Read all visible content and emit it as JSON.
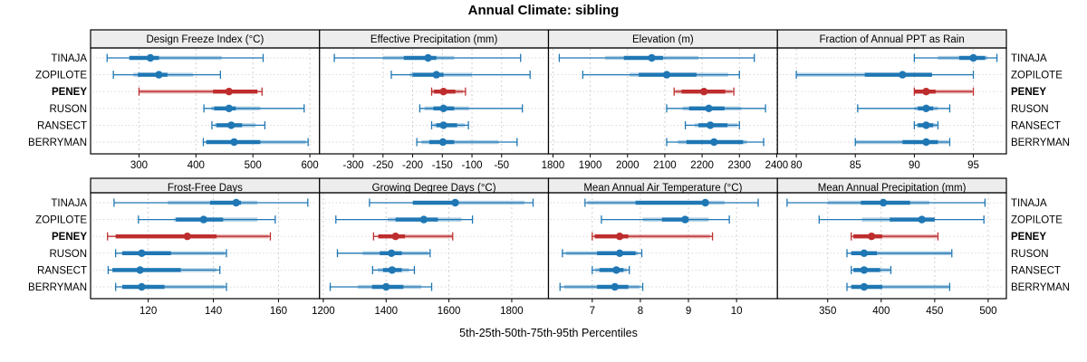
{
  "title": "Annual Climate: sibling",
  "caption": "5th-25th-50th-75th-95th Percentiles",
  "sites": [
    "TINAJA",
    "ZOPILOTE",
    "PENEY",
    "RUSON",
    "RANSECT",
    "BERRYMAN"
  ],
  "highlighted_site": "PENEY",
  "colors": {
    "series_normal": "#1f77b4",
    "series_highlight": "#be2d2d",
    "panel_header_bg": "#ededed",
    "panel_border": "#000000",
    "gridline": "#cccccc",
    "row_gridline": "#d6d6d6",
    "text": "#000000"
  },
  "chart_data": [
    {
      "type": "interval",
      "title": "Design Freeze Index (°C)",
      "grid_row": 0,
      "grid_col": 0,
      "xlim": [
        215,
        617
      ],
      "ticks": [
        300,
        400,
        500,
        600
      ],
      "grid": true,
      "rows": [
        {
          "site": "TINAJA",
          "p5": 244,
          "p25": 283,
          "p50": 320,
          "p75": 445,
          "p95": 518,
          "inner": [
            283,
            335
          ]
        },
        {
          "site": "ZOPILOTE",
          "p5": 255,
          "p25": 290,
          "p50": 335,
          "p75": 395,
          "p95": 443,
          "inner": [
            298,
            350
          ]
        },
        {
          "site": "PENEY",
          "p5": 300,
          "p25": 300,
          "p50": 458,
          "p75": 508,
          "p95": 516,
          "inner": [
            430,
            508
          ]
        },
        {
          "site": "RUSON",
          "p5": 414,
          "p25": 427,
          "p50": 458,
          "p75": 513,
          "p95": 590,
          "inner": [
            432,
            470
          ]
        },
        {
          "site": "RANSECT",
          "p5": 428,
          "p25": 433,
          "p50": 462,
          "p75": 505,
          "p95": 521,
          "inner": [
            436,
            481
          ]
        },
        {
          "site": "BERRYMAN",
          "p5": 413,
          "p25": 418,
          "p50": 467,
          "p75": 593,
          "p95": 597,
          "inner": [
            418,
            513
          ]
        }
      ]
    },
    {
      "type": "interval",
      "title": "Effective Precipitation (mm)",
      "grid_row": 0,
      "grid_col": 1,
      "xlim": [
        -357,
        29
      ],
      "ticks": [
        -300,
        -250,
        -200,
        -150,
        -100,
        -50
      ],
      "grid": true,
      "rows": [
        {
          "site": "TINAJA",
          "p5": -332,
          "p25": -250,
          "p50": -174,
          "p75": -130,
          "p95": -18,
          "inner": [
            -215,
            -160
          ]
        },
        {
          "site": "ZOPILOTE",
          "p5": -236,
          "p25": -205,
          "p50": -160,
          "p75": -100,
          "p95": -2,
          "inner": [
            -200,
            -148
          ]
        },
        {
          "site": "PENEY",
          "p5": -168,
          "p25": -168,
          "p50": -148,
          "p75": -115,
          "p95": -111,
          "inner": [
            -164,
            -128
          ]
        },
        {
          "site": "RUSON",
          "p5": -188,
          "p25": -180,
          "p50": -148,
          "p75": -105,
          "p95": -15,
          "inner": [
            -165,
            -130
          ]
        },
        {
          "site": "RANSECT",
          "p5": -168,
          "p25": -165,
          "p50": -148,
          "p75": -112,
          "p95": -106,
          "inner": [
            -160,
            -125
          ]
        },
        {
          "site": "BERRYMAN",
          "p5": -193,
          "p25": -185,
          "p50": -149,
          "p75": -55,
          "p95": -24,
          "inner": [
            -172,
            -130
          ]
        }
      ]
    },
    {
      "type": "interval",
      "title": "Elevation (m)",
      "grid_row": 0,
      "grid_col": 2,
      "xlim": [
        1788,
        2402
      ],
      "ticks": [
        1800,
        1900,
        2000,
        2100,
        2200,
        2300,
        2400
      ],
      "grid": true,
      "rows": [
        {
          "site": "TINAJA",
          "p5": 1817,
          "p25": 1940,
          "p50": 2065,
          "p75": 2190,
          "p95": 2340,
          "inner": [
            1990,
            2095
          ]
        },
        {
          "site": "ZOPILOTE",
          "p5": 1880,
          "p25": 2005,
          "p50": 2105,
          "p75": 2270,
          "p95": 2300,
          "inner": [
            2030,
            2185
          ]
        },
        {
          "site": "PENEY",
          "p5": 2125,
          "p25": 2128,
          "p50": 2205,
          "p75": 2280,
          "p95": 2285,
          "inner": [
            2145,
            2262
          ]
        },
        {
          "site": "RUSON",
          "p5": 2105,
          "p25": 2148,
          "p50": 2218,
          "p75": 2305,
          "p95": 2370,
          "inner": [
            2165,
            2260
          ]
        },
        {
          "site": "RANSECT",
          "p5": 2155,
          "p25": 2180,
          "p50": 2222,
          "p75": 2295,
          "p95": 2300,
          "inner": [
            2190,
            2268
          ]
        },
        {
          "site": "BERRYMAN",
          "p5": 2105,
          "p25": 2135,
          "p50": 2232,
          "p75": 2320,
          "p95": 2365,
          "inner": [
            2158,
            2310
          ]
        }
      ]
    },
    {
      "type": "interval",
      "title": "Fraction of Annual PPT as Rain",
      "grid_row": 0,
      "grid_col": 3,
      "xlim": [
        78.4,
        97.8
      ],
      "ticks": [
        80,
        85,
        90,
        95
      ],
      "grid": true,
      "rows": [
        {
          "site": "TINAJA",
          "p5": 90,
          "p25": 92,
          "p50": 95,
          "p75": 96.2,
          "p95": 97,
          "inner": [
            93.8,
            96
          ]
        },
        {
          "site": "ZOPILOTE",
          "p5": 80,
          "p25": 80,
          "p50": 89,
          "p75": 91.5,
          "p95": 95,
          "inner": [
            85.8,
            91.5
          ]
        },
        {
          "site": "PENEY",
          "p5": 90,
          "p25": 90,
          "p50": 91,
          "p75": 94.9,
          "p95": 95,
          "inner": [
            90,
            91.8
          ]
        },
        {
          "site": "RUSON",
          "p5": 85.2,
          "p25": 90,
          "p50": 91,
          "p75": 92,
          "p95": 93,
          "inner": [
            90.3,
            91.6
          ]
        },
        {
          "site": "RANSECT",
          "p5": 90,
          "p25": 90.2,
          "p50": 91,
          "p75": 91.9,
          "p95": 92,
          "inner": [
            90.3,
            91.6
          ]
        },
        {
          "site": "BERRYMAN",
          "p5": 85,
          "p25": 85,
          "p50": 91,
          "p75": 92.9,
          "p95": 93,
          "inner": [
            89,
            92
          ]
        }
      ]
    },
    {
      "type": "interval",
      "title": "Frost-Free Days",
      "grid_row": 1,
      "grid_col": 0,
      "xlim": [
        102.3,
        172.6
      ],
      "ticks": [
        120,
        140,
        160
      ],
      "grid": true,
      "rows": [
        {
          "site": "TINAJA",
          "p5": 109.5,
          "p25": 126,
          "p50": 147,
          "p75": 153.5,
          "p95": 169,
          "inner": [
            139,
            148.5
          ]
        },
        {
          "site": "ZOPILOTE",
          "p5": 117,
          "p25": 128,
          "p50": 137,
          "p75": 153.5,
          "p95": 159,
          "inner": [
            128.5,
            143
          ]
        },
        {
          "site": "PENEY",
          "p5": 107.5,
          "p25": 110,
          "p50": 132,
          "p75": 157,
          "p95": 157.5,
          "inner": [
            110,
            141
          ]
        },
        {
          "site": "RUSON",
          "p5": 110,
          "p25": 112,
          "p50": 118,
          "p75": 143.5,
          "p95": 144,
          "inner": [
            112,
            127
          ]
        },
        {
          "site": "RANSECT",
          "p5": 107.7,
          "p25": 109,
          "p50": 117.5,
          "p75": 141,
          "p95": 142,
          "inner": [
            109,
            130
          ]
        },
        {
          "site": "BERRYMAN",
          "p5": 110,
          "p25": 112,
          "p50": 118,
          "p75": 143.5,
          "p95": 144,
          "inner": [
            112,
            125
          ]
        }
      ]
    },
    {
      "type": "interval",
      "title": "Growing Degree Days (°C)",
      "grid_row": 1,
      "grid_col": 1,
      "xlim": [
        1188,
        1917
      ],
      "ticks": [
        1200,
        1400,
        1600,
        1800
      ],
      "grid": true,
      "rows": [
        {
          "site": "TINAJA",
          "p5": 1347,
          "p25": 1485,
          "p50": 1620,
          "p75": 1840,
          "p95": 1868,
          "inner": [
            1485,
            1625
          ]
        },
        {
          "site": "ZOPILOTE",
          "p5": 1240,
          "p25": 1405,
          "p50": 1520,
          "p75": 1640,
          "p95": 1675,
          "inner": [
            1430,
            1565
          ]
        },
        {
          "site": "PENEY",
          "p5": 1360,
          "p25": 1375,
          "p50": 1430,
          "p75": 1610,
          "p95": 1612,
          "inner": [
            1375,
            1460
          ]
        },
        {
          "site": "RUSON",
          "p5": 1245,
          "p25": 1325,
          "p50": 1417,
          "p75": 1535,
          "p95": 1540,
          "inner": [
            1380,
            1450
          ]
        },
        {
          "site": "RANSECT",
          "p5": 1357,
          "p25": 1373,
          "p50": 1419,
          "p75": 1473,
          "p95": 1490,
          "inner": [
            1390,
            1450
          ]
        },
        {
          "site": "BERRYMAN",
          "p5": 1222,
          "p25": 1310,
          "p50": 1400,
          "p75": 1512,
          "p95": 1545,
          "inner": [
            1355,
            1455
          ]
        }
      ]
    },
    {
      "type": "interval",
      "title": "Mean Annual Air Temperature (°C)",
      "grid_row": 1,
      "grid_col": 2,
      "xlim": [
        6.09,
        10.85
      ],
      "ticks": [
        7,
        8,
        9,
        10
      ],
      "grid": true,
      "rows": [
        {
          "site": "TINAJA",
          "p5": 6.85,
          "p25": 6.9,
          "p50": 9.35,
          "p75": 9.75,
          "p95": 10.45,
          "inner": [
            7.9,
            9.4
          ]
        },
        {
          "site": "ZOPILOTE",
          "p5": 7.19,
          "p25": 8.05,
          "p50": 8.93,
          "p75": 9.42,
          "p95": 9.85,
          "inner": [
            8.45,
            9.0
          ]
        },
        {
          "site": "PENEY",
          "p5": 7.0,
          "p25": 7.05,
          "p50": 7.57,
          "p75": 9.45,
          "p95": 9.5,
          "inner": [
            7.05,
            7.75
          ]
        },
        {
          "site": "RUSON",
          "p5": 6.38,
          "p25": 6.45,
          "p50": 7.57,
          "p75": 7.95,
          "p95": 8.03,
          "inner": [
            7.1,
            7.9
          ]
        },
        {
          "site": "RANSECT",
          "p5": 7.0,
          "p25": 7.06,
          "p50": 7.5,
          "p75": 7.72,
          "p95": 7.77,
          "inner": [
            7.15,
            7.65
          ]
        },
        {
          "site": "BERRYMAN",
          "p5": 6.33,
          "p25": 6.42,
          "p50": 7.47,
          "p75": 7.98,
          "p95": 8.05,
          "inner": [
            7.1,
            7.75
          ]
        }
      ]
    },
    {
      "type": "interval",
      "title": "Mean Annual Precipitation (mm)",
      "grid_row": 1,
      "grid_col": 3,
      "xlim": [
        303,
        517
      ],
      "ticks": [
        350,
        400,
        450,
        500
      ],
      "grid": true,
      "rows": [
        {
          "site": "TINAJA",
          "p5": 312,
          "p25": 350,
          "p50": 402,
          "p75": 445,
          "p95": 497,
          "inner": [
            381,
            427
          ]
        },
        {
          "site": "ZOPILOTE",
          "p5": 342,
          "p25": 382,
          "p50": 438,
          "p75": 450,
          "p95": 496,
          "inner": [
            408,
            450
          ]
        },
        {
          "site": "PENEY",
          "p5": 372,
          "p25": 374,
          "p50": 391,
          "p75": 452,
          "p95": 453,
          "inner": [
            374,
            401
          ]
        },
        {
          "site": "RUSON",
          "p5": 368,
          "p25": 372,
          "p50": 384,
          "p75": 465,
          "p95": 466,
          "inner": [
            372,
            396
          ]
        },
        {
          "site": "RANSECT",
          "p5": 372,
          "p25": 374,
          "p50": 384,
          "p75": 408,
          "p95": 409,
          "inner": [
            374,
            399
          ]
        },
        {
          "site": "BERRYMAN",
          "p5": 368,
          "p25": 372,
          "p50": 384,
          "p75": 463,
          "p95": 464,
          "inner": [
            372,
            401
          ]
        }
      ]
    }
  ]
}
